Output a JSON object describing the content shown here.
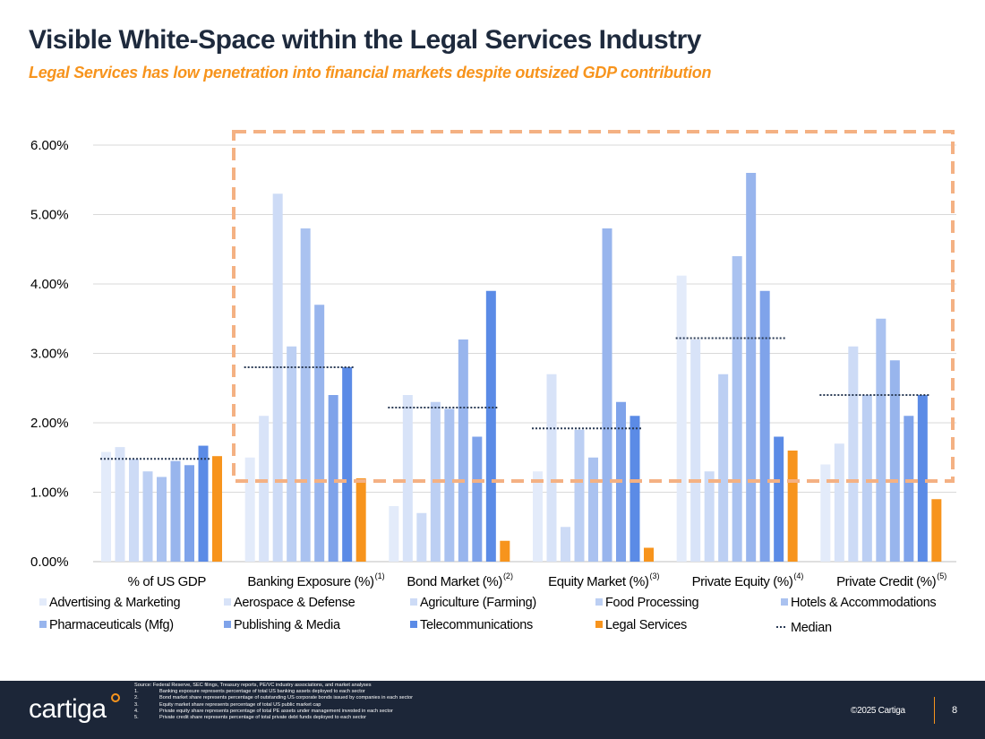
{
  "slide": {
    "title": "Visible White-Space within the Legal Services Industry",
    "subtitle": "Legal Services has low penetration into financial markets despite outsized GDP contribution"
  },
  "chart_data": {
    "type": "bar",
    "ylim": [
      0,
      6
    ],
    "y_ticks": [
      "0.00%",
      "1.00%",
      "2.00%",
      "3.00%",
      "4.00%",
      "5.00%",
      "6.00%"
    ],
    "grid": true,
    "legend_position": "bottom",
    "categories": [
      {
        "label": "% of US GDP",
        "sup": ""
      },
      {
        "label": "Banking Exposure (%)",
        "sup": "(1)"
      },
      {
        "label": "Bond Market (%)",
        "sup": "(2)"
      },
      {
        "label": "Equity Market (%)",
        "sup": "(3)"
      },
      {
        "label": "Private Equity (%)",
        "sup": "(4)"
      },
      {
        "label": "Private Credit (%)",
        "sup": "(5)"
      }
    ],
    "series": [
      {
        "name": "Advertising & Marketing",
        "color": "#e3ebfa",
        "values": [
          1.58,
          1.5,
          0.8,
          1.3,
          4.12,
          1.4
        ]
      },
      {
        "name": "Aerospace & Defense",
        "color": "#d8e3f8",
        "values": [
          1.65,
          2.1,
          2.4,
          2.7,
          3.2,
          1.7
        ]
      },
      {
        "name": "Agriculture (Farming)",
        "color": "#cddbf6",
        "values": [
          1.48,
          5.3,
          0.7,
          0.5,
          1.3,
          3.1
        ]
      },
      {
        "name": "Food Processing",
        "color": "#bccff3",
        "values": [
          1.3,
          3.1,
          2.3,
          1.9,
          2.7,
          2.4
        ]
      },
      {
        "name": "Hotels & Accommodations",
        "color": "#aac2f0",
        "values": [
          1.22,
          4.8,
          2.2,
          1.5,
          4.4,
          3.5
        ]
      },
      {
        "name": "Pharmaceuticals (Mfg)",
        "color": "#98b5ed",
        "values": [
          1.45,
          3.7,
          3.2,
          4.8,
          5.6,
          2.9
        ]
      },
      {
        "name": "Publishing & Media",
        "color": "#7fa3ea",
        "values": [
          1.39,
          2.4,
          1.8,
          2.3,
          3.9,
          2.1
        ]
      },
      {
        "name": "Telecommunications",
        "color": "#5b8be6",
        "values": [
          1.67,
          2.8,
          3.9,
          2.1,
          1.8,
          2.4
        ]
      },
      {
        "name": "Legal Services",
        "color": "#f7941d",
        "values": [
          1.52,
          1.2,
          0.3,
          0.2,
          1.6,
          0.9
        ]
      }
    ],
    "median": {
      "name": "Median",
      "values": [
        1.48,
        2.8,
        2.22,
        1.92,
        3.22,
        2.4
      ]
    }
  },
  "footer": {
    "logo": "cartiga",
    "source": "Source: Federal Reserve, SEC filings, Treasury reports, PE/VC industry associations, and market analyses",
    "footnotes": [
      {
        "num": "1.",
        "text": "Banking exposure represents percentage of total US banking assets deployed to each sector"
      },
      {
        "num": "2.",
        "text": "Bond market share represents percentage of outstanding US corporate bonds issued by companies in each sector"
      },
      {
        "num": "3.",
        "text": "Equity market share represents percentage of total US public market cap"
      },
      {
        "num": "4.",
        "text": "Private equity share represents percentage of total PE assets under management invested in each sector"
      },
      {
        "num": "5.",
        "text": "Private credit share represents percentage of total private debt funds deployed to each sector"
      }
    ],
    "copyright": "©2025 Cartiga",
    "page": "8"
  }
}
